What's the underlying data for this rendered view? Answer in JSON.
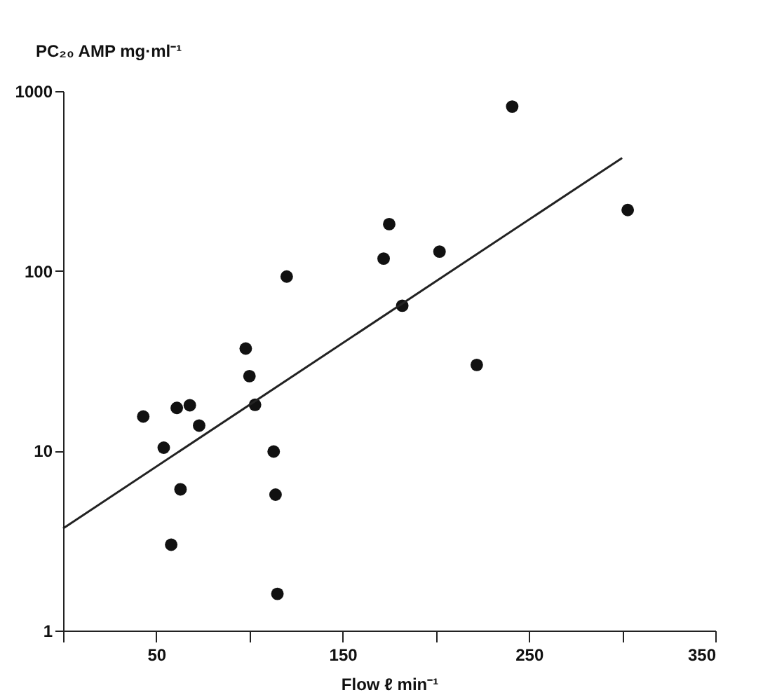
{
  "chart_data": {
    "type": "scatter",
    "xlabel": "Flow ℓ min⁻¹",
    "ylabel": "PC₂₀ AMP mg·ml⁻¹",
    "log": "y",
    "grid": false,
    "xlim": [
      0,
      350
    ],
    "xticks": [
      {
        "value": 0,
        "label": null
      },
      50,
      {
        "value": 100,
        "label": null
      },
      150,
      {
        "value": 200,
        "label": null
      },
      250,
      {
        "value": 300,
        "label": null
      },
      350
    ],
    "ylim": [
      1,
      1000
    ],
    "yticks": [
      1,
      10,
      100,
      1000
    ],
    "series": [
      {
        "color": "#111111",
        "marker": "circle",
        "x": [
          241,
          303,
          175,
          172,
          202,
          120,
          182,
          222,
          98,
          100,
          103,
          43,
          61,
          68,
          73,
          54,
          113,
          63,
          114,
          58,
          115
        ],
        "values": [
          820,
          218,
          182,
          117,
          128,
          93,
          64,
          30,
          37,
          26,
          18,
          15.5,
          17.3,
          17.9,
          13.8,
          10.4,
          9.9,
          6.1,
          5.7,
          3.0,
          1.6
        ]
      },
      {
        "type": "line",
        "color": "#222222",
        "line_style": "solid",
        "x": [
          0,
          300
        ],
        "values": [
          3.7,
          425
        ]
      }
    ]
  }
}
